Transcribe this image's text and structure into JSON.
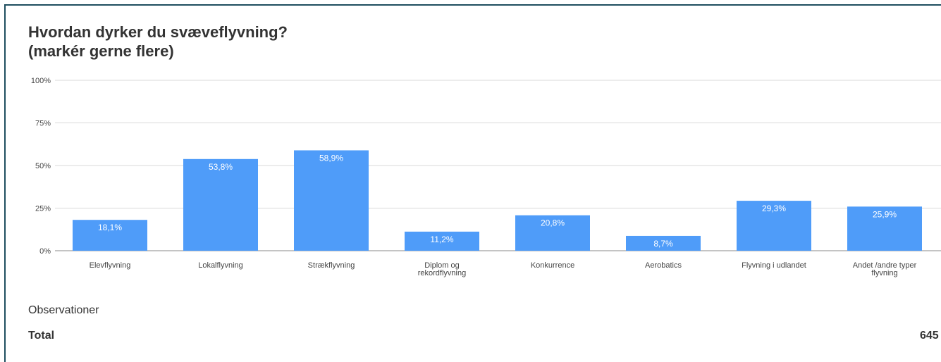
{
  "title_line1": "Hvordan dyrker du svæveflyvning?",
  "title_line2": "(markér gerne flere)",
  "chart_data": {
    "type": "bar",
    "categories": [
      [
        "Elevflyvning"
      ],
      [
        "Lokalflyvning"
      ],
      [
        "Strækflyvning"
      ],
      [
        "Diplom og",
        "rekordflyvning"
      ],
      [
        "Konkurrence"
      ],
      [
        "Aerobatics"
      ],
      [
        "Flyvning i udlandet"
      ],
      [
        "Andet /andre typer",
        "flyvning"
      ]
    ],
    "values": [
      18.1,
      53.8,
      58.9,
      11.2,
      20.8,
      8.7,
      29.3,
      25.9
    ],
    "value_labels": [
      "18,1%",
      "53,8%",
      "58,9%",
      "11,2%",
      "20,8%",
      "8,7%",
      "29,3%",
      "25,9%"
    ],
    "y_ticks": [
      "0%",
      "25%",
      "50%",
      "75%",
      "100%"
    ],
    "y_tick_values": [
      0,
      25,
      50,
      75,
      100
    ],
    "ylim": [
      0,
      100
    ],
    "grid": true,
    "bar_color": "#4f9cf9",
    "grid_color": "#d9d9d9"
  },
  "observations_label": "Observationer",
  "total_label": "Total",
  "total_value": "645"
}
